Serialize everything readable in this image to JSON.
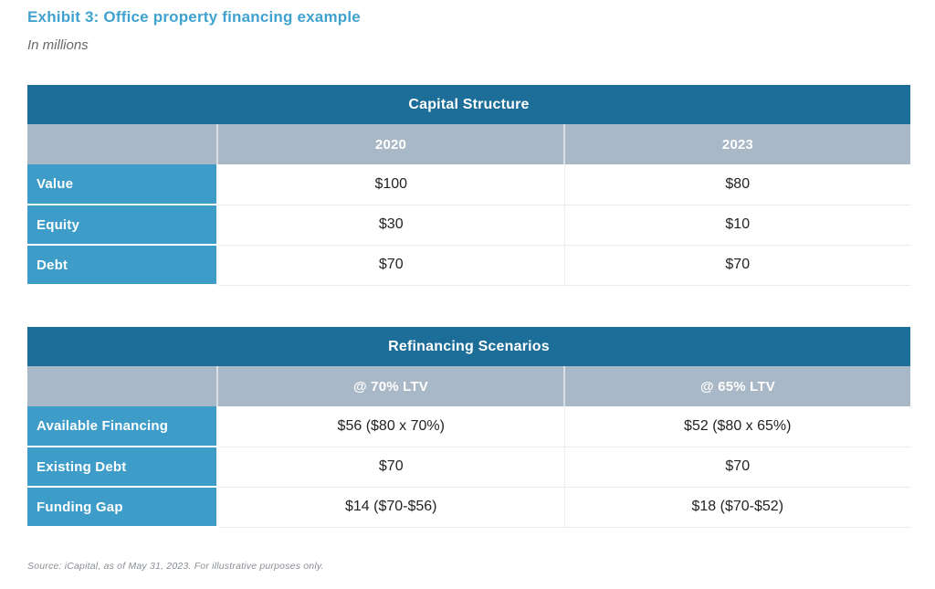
{
  "page": {
    "title": "Exhibit 3: Office property financing example",
    "subtitle": "In millions",
    "source": "Source: iCapital, as of May 31, 2023. For illustrative purposes only."
  },
  "colors": {
    "title_teal": "#3FA2CF",
    "table_header_dark": "#1C6D98",
    "column_header_gray": "#A9B8C6",
    "row_label_blue": "#3E9CC9",
    "value_text": "#222325",
    "source_gray": "#8A8F94"
  },
  "tables": [
    {
      "title": "Capital Structure",
      "columns": [
        "",
        "2020",
        "2023"
      ],
      "rows": [
        {
          "label": "Value",
          "values": [
            "$100",
            "$80"
          ]
        },
        {
          "label": "Equity",
          "values": [
            "$30",
            "$10"
          ]
        },
        {
          "label": "Debt",
          "values": [
            "$70",
            "$70"
          ]
        }
      ]
    },
    {
      "title": "Refinancing Scenarios",
      "columns": [
        "",
        "@ 70% LTV",
        "@ 65% LTV"
      ],
      "rows": [
        {
          "label": "Available Financing",
          "values": [
            "$56 ($80 x 70%)",
            "$52 ($80 x 65%)"
          ]
        },
        {
          "label": "Existing Debt",
          "values": [
            "$70",
            "$70"
          ]
        },
        {
          "label": "Funding Gap",
          "values": [
            "$14 ($70-$56)",
            "$18 ($70-$52)"
          ]
        }
      ]
    }
  ]
}
